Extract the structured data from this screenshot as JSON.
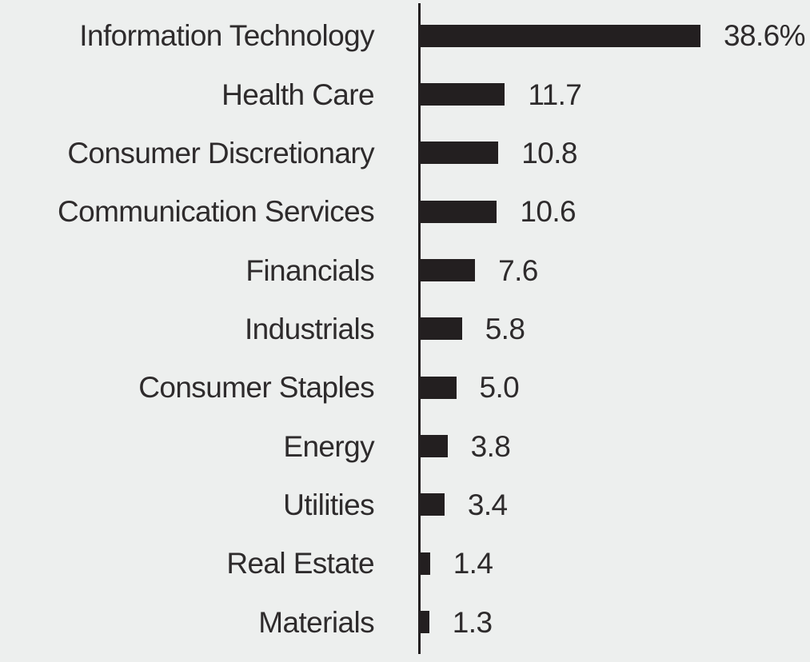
{
  "page": {
    "background_color": "#edefee"
  },
  "chart_data": {
    "type": "bar",
    "orientation": "horizontal",
    "title": "",
    "xlabel": "",
    "ylabel": "",
    "unit": "%",
    "grid": false,
    "legend": false,
    "axis_baseline": "left-vertical",
    "xlim": [
      0,
      40
    ],
    "categories": [
      "Information Technology",
      "Health Care",
      "Consumer Discretionary",
      "Communication Services",
      "Financials",
      "Industrials",
      "Consumer Staples",
      "Energy",
      "Utilities",
      "Real Estate",
      "Materials"
    ],
    "values": [
      38.6,
      11.7,
      10.8,
      10.6,
      7.6,
      5.8,
      5.0,
      3.8,
      3.4,
      1.4,
      1.3
    ],
    "value_labels": [
      "38.6%",
      "11.7",
      "10.8",
      "10.6",
      "7.6",
      "5.8",
      "5.0",
      "3.8",
      "3.4",
      "1.4",
      "1.3"
    ],
    "colors": {
      "bar": "#231f20",
      "axis": "#231f20",
      "text": "#2e2b2c"
    }
  }
}
